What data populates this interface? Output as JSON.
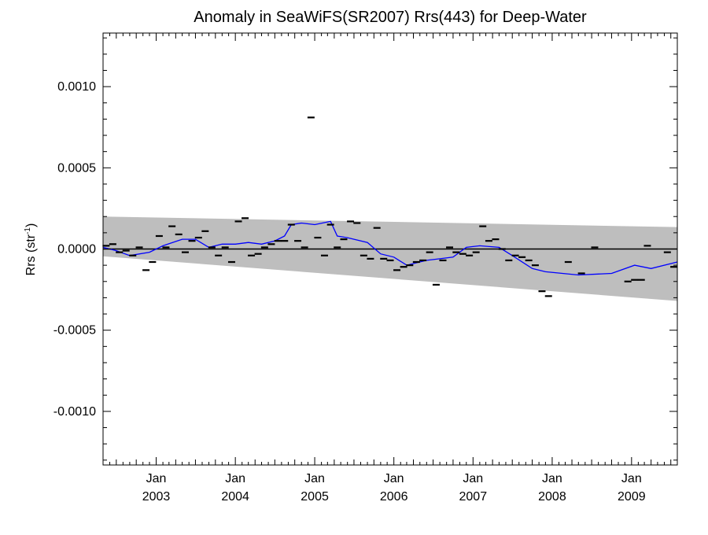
{
  "chart_data": {
    "type": "scatter",
    "title": "Anomaly in SeaWiFS(SR2007) Rrs(443) for Deep-Water",
    "xlabel": "",
    "ylabel": "Rrs (str⁻¹)",
    "xlim": [
      "2002-05-01",
      "2009-07-31"
    ],
    "ylim": [
      -0.00133,
      0.00133
    ],
    "x_ticks": [
      {
        "date": "2003-01-01",
        "month": "Jan",
        "year": "2003"
      },
      {
        "date": "2004-01-01",
        "month": "Jan",
        "year": "2004"
      },
      {
        "date": "2005-01-01",
        "month": "Jan",
        "year": "2005"
      },
      {
        "date": "2006-01-01",
        "month": "Jan",
        "year": "2006"
      },
      {
        "date": "2007-01-01",
        "month": "Jan",
        "year": "2007"
      },
      {
        "date": "2008-01-01",
        "month": "Jan",
        "year": "2008"
      },
      {
        "date": "2009-01-01",
        "month": "Jan",
        "year": "2009"
      }
    ],
    "y_ticks": [
      {
        "value": 0.001,
        "label": "0.0010"
      },
      {
        "value": 0.0005,
        "label": "0.0005"
      },
      {
        "value": 0.0,
        "label": "0.0000"
      },
      {
        "value": -0.0005,
        "label": "-0.0005"
      },
      {
        "value": -0.001,
        "label": "-0.0010"
      }
    ],
    "uncertainty_band": {
      "upper": [
        [
          "2002-05-01",
          0.0002
        ],
        [
          "2009-07-31",
          0.000135
        ]
      ],
      "lower": [
        [
          "2002-05-01",
          -4.5e-05
        ],
        [
          "2009-07-31",
          -0.00032
        ]
      ],
      "color": "#bebebe"
    },
    "zero_line": 0.0,
    "series": [
      {
        "kind": "monthly",
        "color": "#000000",
        "points": [
          [
            "2002-05-15",
            2e-05
          ],
          [
            "2002-06-15",
            3e-05
          ],
          [
            "2002-07-15",
            -2e-05
          ],
          [
            "2002-08-15",
            -1e-05
          ],
          [
            "2002-09-15",
            -4e-05
          ],
          [
            "2002-10-15",
            1e-05
          ],
          [
            "2002-11-15",
            -0.00013
          ],
          [
            "2002-12-15",
            -8e-05
          ],
          [
            "2003-01-15",
            8e-05
          ],
          [
            "2003-02-15",
            1e-05
          ],
          [
            "2003-03-15",
            0.00014
          ],
          [
            "2003-04-15",
            9e-05
          ],
          [
            "2003-05-15",
            -2e-05
          ],
          [
            "2003-06-15",
            5e-05
          ],
          [
            "2003-07-15",
            7e-05
          ],
          [
            "2003-08-15",
            0.00011
          ],
          [
            "2003-09-15",
            1e-05
          ],
          [
            "2003-10-15",
            -4e-05
          ],
          [
            "2003-11-15",
            1e-05
          ],
          [
            "2003-12-15",
            -8e-05
          ],
          [
            "2004-01-15",
            0.00017
          ],
          [
            "2004-02-15",
            0.00019
          ],
          [
            "2004-03-15",
            -4e-05
          ],
          [
            "2004-04-15",
            -3e-05
          ],
          [
            "2004-05-15",
            1e-05
          ],
          [
            "2004-06-15",
            3e-05
          ],
          [
            "2004-07-15",
            5e-05
          ],
          [
            "2004-08-15",
            5e-05
          ],
          [
            "2004-09-15",
            0.00015
          ],
          [
            "2004-10-15",
            5e-05
          ],
          [
            "2004-11-15",
            1e-05
          ],
          [
            "2004-12-15",
            0.00081
          ],
          [
            "2005-01-15",
            7e-05
          ],
          [
            "2005-02-15",
            -4e-05
          ],
          [
            "2005-03-15",
            0.00015
          ],
          [
            "2005-04-15",
            1e-05
          ],
          [
            "2005-05-15",
            6e-05
          ],
          [
            "2005-06-15",
            0.00017
          ],
          [
            "2005-07-15",
            0.00016
          ],
          [
            "2005-08-15",
            -4e-05
          ],
          [
            "2005-09-15",
            -6e-05
          ],
          [
            "2005-10-15",
            0.00013
          ],
          [
            "2005-11-15",
            -6e-05
          ],
          [
            "2005-12-15",
            -7e-05
          ],
          [
            "2006-01-15",
            -0.00013
          ],
          [
            "2006-02-15",
            -0.00011
          ],
          [
            "2006-03-15",
            -0.0001
          ],
          [
            "2006-04-15",
            -8e-05
          ],
          [
            "2006-05-15",
            -7e-05
          ],
          [
            "2006-06-15",
            -2e-05
          ],
          [
            "2006-07-15",
            -0.00022
          ],
          [
            "2006-08-15",
            -7e-05
          ],
          [
            "2006-09-15",
            1e-05
          ],
          [
            "2006-10-15",
            -2e-05
          ],
          [
            "2006-11-15",
            -3e-05
          ],
          [
            "2006-12-15",
            -4e-05
          ],
          [
            "2007-01-15",
            -2e-05
          ],
          [
            "2007-02-15",
            0.00014
          ],
          [
            "2007-03-15",
            5e-05
          ],
          [
            "2007-04-15",
            6e-05
          ],
          [
            "2007-05-15",
            0.0
          ],
          [
            "2007-06-15",
            -7e-05
          ],
          [
            "2007-07-15",
            -4e-05
          ],
          [
            "2007-08-15",
            -5e-05
          ],
          [
            "2007-09-15",
            -7e-05
          ],
          [
            "2007-10-15",
            -0.0001
          ],
          [
            "2007-11-15",
            -0.00026
          ],
          [
            "2007-12-15",
            -0.00029
          ],
          [
            "2008-03-15",
            -8e-05
          ],
          [
            "2008-05-15",
            -0.00015
          ],
          [
            "2008-07-15",
            1e-05
          ],
          [
            "2008-12-15",
            -0.0002
          ],
          [
            "2009-01-15",
            -0.00019
          ],
          [
            "2009-02-15",
            -0.00019
          ],
          [
            "2009-03-15",
            2e-05
          ],
          [
            "2009-06-15",
            -2e-05
          ],
          [
            "2009-07-15",
            -0.00011
          ]
        ]
      },
      {
        "kind": "running-mean",
        "color": "#0000ff",
        "points": [
          [
            "2002-05-01",
            1e-05
          ],
          [
            "2002-07-01",
            -1e-05
          ],
          [
            "2002-09-01",
            -4e-05
          ],
          [
            "2002-12-01",
            -2e-05
          ],
          [
            "2003-02-01",
            2e-05
          ],
          [
            "2003-05-01",
            6e-05
          ],
          [
            "2003-07-01",
            6e-05
          ],
          [
            "2003-09-01",
            1e-05
          ],
          [
            "2003-11-01",
            3e-05
          ],
          [
            "2004-01-01",
            3e-05
          ],
          [
            "2004-03-01",
            4e-05
          ],
          [
            "2004-05-01",
            3e-05
          ],
          [
            "2004-07-01",
            5e-05
          ],
          [
            "2004-08-15",
            8e-05
          ],
          [
            "2004-09-15",
            0.00015
          ],
          [
            "2004-11-01",
            0.00016
          ],
          [
            "2005-01-01",
            0.00015
          ],
          [
            "2005-03-15",
            0.00017
          ],
          [
            "2005-04-15",
            8e-05
          ],
          [
            "2005-06-01",
            7e-05
          ],
          [
            "2005-09-01",
            4e-05
          ],
          [
            "2005-11-01",
            -3e-05
          ],
          [
            "2006-01-01",
            -5e-05
          ],
          [
            "2006-03-01",
            -0.0001
          ],
          [
            "2006-06-01",
            -7e-05
          ],
          [
            "2006-08-01",
            -6e-05
          ],
          [
            "2006-10-01",
            -5e-05
          ],
          [
            "2006-12-01",
            1e-05
          ],
          [
            "2007-02-01",
            2e-05
          ],
          [
            "2007-05-01",
            1e-05
          ],
          [
            "2007-07-01",
            -4e-05
          ],
          [
            "2007-10-01",
            -0.00012
          ],
          [
            "2007-12-01",
            -0.00014
          ],
          [
            "2008-05-01",
            -0.00016
          ],
          [
            "2008-10-01",
            -0.00015
          ],
          [
            "2009-01-15",
            -0.0001
          ],
          [
            "2009-04-01",
            -0.00012
          ],
          [
            "2009-07-31",
            -8e-05
          ]
        ]
      }
    ],
    "grid": false,
    "legend": "none"
  }
}
